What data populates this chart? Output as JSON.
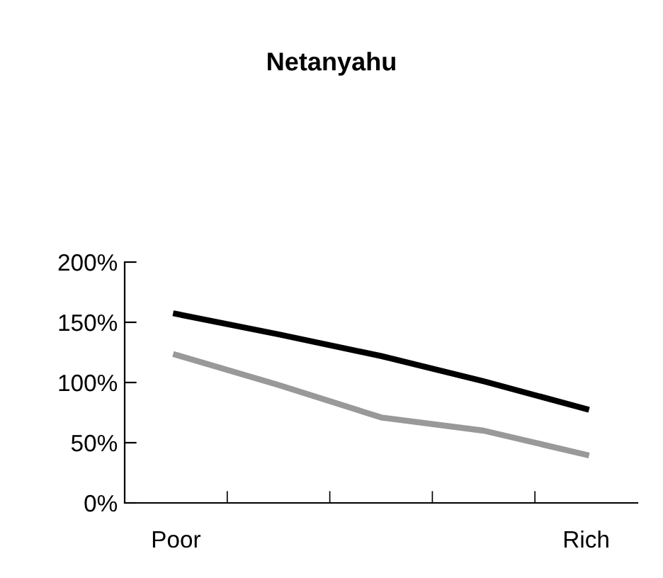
{
  "chart_data": {
    "type": "line",
    "title": "Netanyahu",
    "categories": [
      "Poor",
      null,
      null,
      null,
      "Rich"
    ],
    "series": [
      {
        "color": "#000000",
        "values": [
          157,
          140,
          122,
          101,
          78
        ]
      },
      {
        "color": "#999999",
        "values": [
          123,
          98,
          71,
          60,
          40
        ]
      }
    ],
    "ylim": [
      0,
      200
    ],
    "yticks": [
      {
        "value": 0,
        "label": "0%"
      },
      {
        "value": 50,
        "label": "50%"
      },
      {
        "value": 100,
        "label": "100%"
      },
      {
        "value": 150,
        "label": "150%"
      },
      {
        "value": 200,
        "label": "200%"
      }
    ],
    "grid": false,
    "legend": false,
    "marker": "none",
    "line_style": "solid"
  }
}
